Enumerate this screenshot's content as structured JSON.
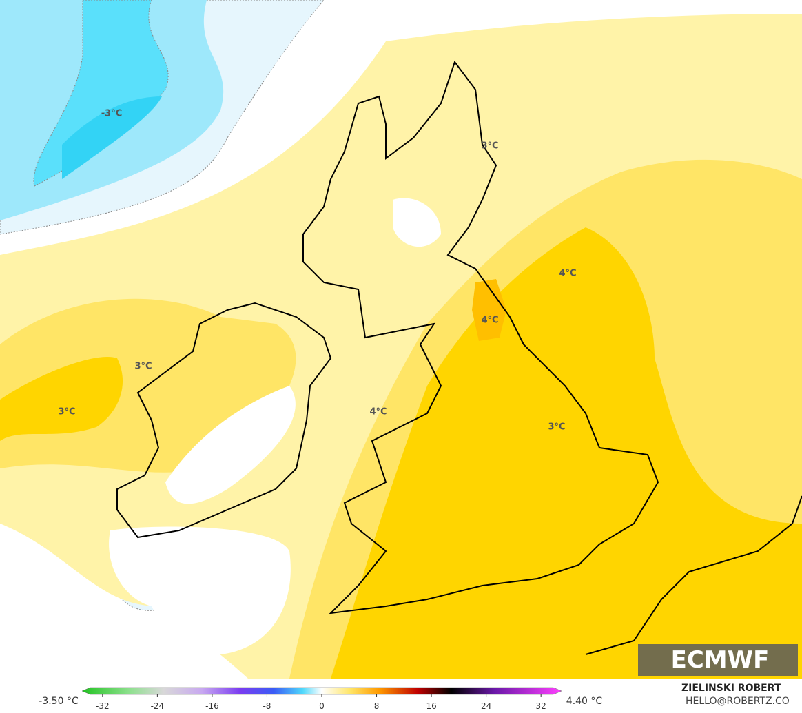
{
  "map_labels": [
    "-3°C",
    "3°C",
    "4°C",
    "4°C",
    "3°C",
    "3°C",
    "4°C",
    "3°C"
  ],
  "colorbar": {
    "min_label": "-3.50 °C",
    "max_label": "4.40 °C",
    "ticks": [
      -32,
      -24,
      -16,
      -8,
      0,
      8,
      16,
      24,
      32
    ],
    "lim": [
      -35,
      35
    ]
  },
  "logo": "ECMWF",
  "credit": {
    "name": "ZIELINSKI ROBERT",
    "email": "HELLO@ROBERTZ.CO"
  }
}
